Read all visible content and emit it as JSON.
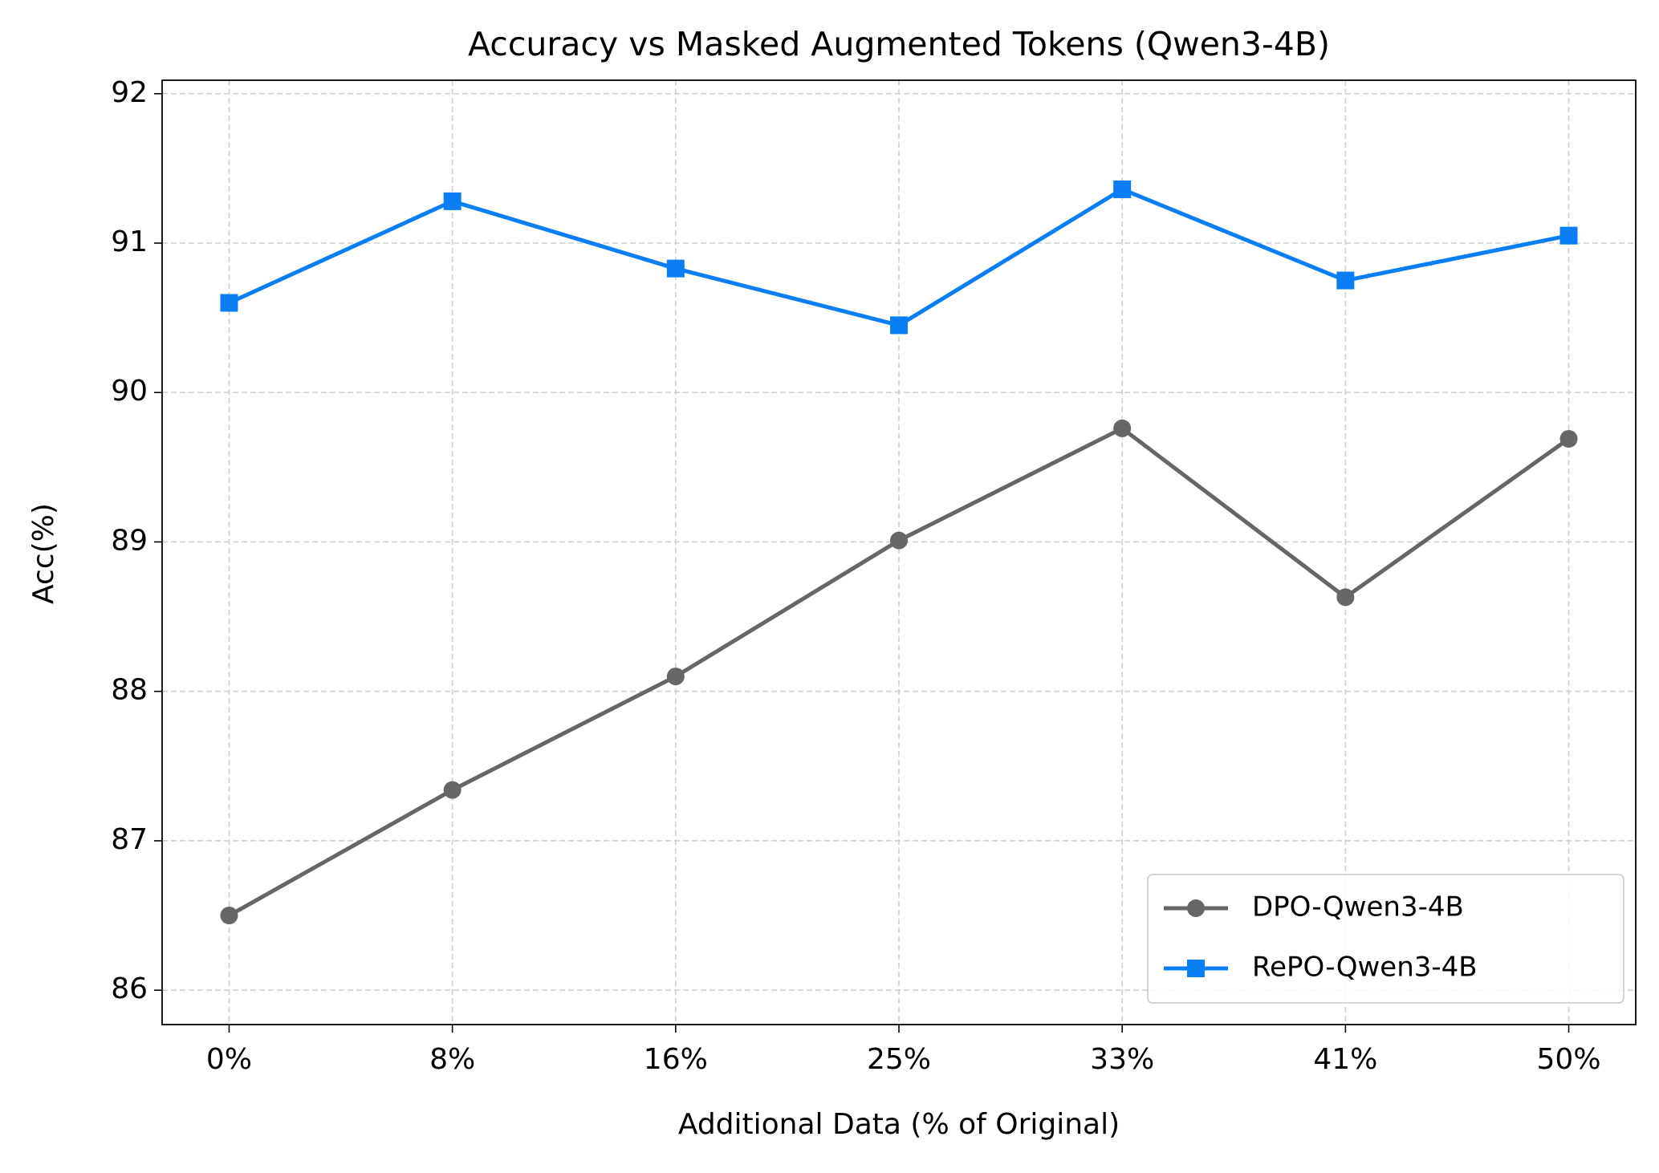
{
  "chart_data": {
    "type": "line",
    "title": "Accuracy vs Masked Augmented Tokens (Qwen3-4B)",
    "x_label": "Additional Data (% of Original)",
    "y_label": "Acc(%)",
    "categories": [
      "0%",
      "8%",
      "16%",
      "25%",
      "33%",
      "41%",
      "50%"
    ],
    "series": [
      {
        "name": "DPO-Qwen3-4B",
        "color": "#666666",
        "marker": "circle",
        "values": [
          86.5,
          87.34,
          88.1,
          89.01,
          89.76,
          88.63,
          89.69
        ]
      },
      {
        "name": "RePO-Qwen3-4B",
        "color": "#0a7ef5",
        "marker": "square",
        "values": [
          90.6,
          91.28,
          90.83,
          90.45,
          91.36,
          90.75,
          91.05
        ]
      }
    ],
    "ylim": [
      85.77,
      92.09
    ],
    "yticks": [
      86,
      87,
      88,
      89,
      90,
      91,
      92
    ],
    "grid": true,
    "legend": "lower right"
  }
}
